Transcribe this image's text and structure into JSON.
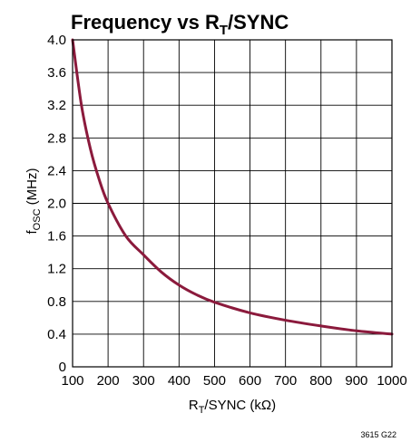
{
  "chart_data": {
    "type": "line",
    "title": {
      "main": "Frequency vs R",
      "sub": "T",
      "rest": "/SYNC"
    },
    "xlabel": {
      "main": "R",
      "sub": "T",
      "rest": "/SYNC (kΩ)"
    },
    "ylabel": {
      "main": "f",
      "sub": "OSC",
      "rest": " (MHz)"
    },
    "xlim": [
      100,
      1000
    ],
    "ylim": [
      0,
      4.0
    ],
    "x_ticks": [
      "100",
      "200",
      "300",
      "400",
      "500",
      "600",
      "700",
      "800",
      "900",
      "1000"
    ],
    "y_ticks": [
      "0",
      "0.4",
      "0.8",
      "1.2",
      "1.6",
      "2.0",
      "2.4",
      "2.8",
      "3.2",
      "3.6",
      "4.0"
    ],
    "grid": true,
    "series": [
      {
        "color": "#8b1a3c",
        "x": [
          100,
          125,
          150,
          175,
          200,
          250,
          300,
          350,
          400,
          450,
          500,
          600,
          700,
          800,
          900,
          1000
        ],
        "y": [
          4.0,
          3.2,
          2.67,
          2.29,
          2.0,
          1.6,
          1.37,
          1.16,
          1.0,
          0.88,
          0.79,
          0.66,
          0.57,
          0.5,
          0.44,
          0.4
        ]
      }
    ],
    "figure_id": "3615 G22"
  }
}
